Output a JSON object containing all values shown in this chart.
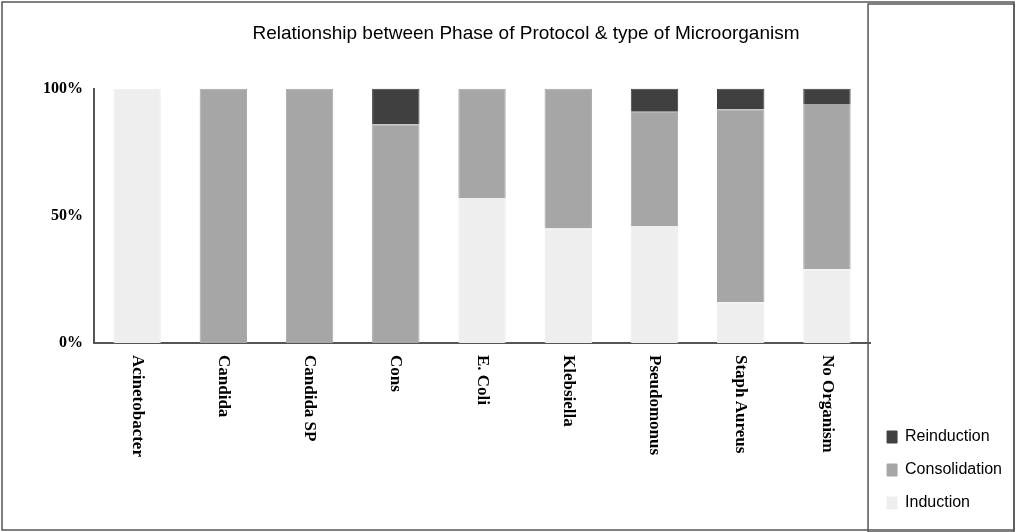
{
  "chart_data": {
    "type": "bar",
    "title": "Relationship between Phase of Protocol & type of Microorganism",
    "categories": [
      "Acinetobacter",
      "Candida",
      "Candida SP",
      "Cons",
      "E. Coli",
      "Klebsiella",
      "Pseudomonus",
      "Staph Aureus",
      "No Organism"
    ],
    "stacked": true,
    "series": [
      {
        "name": "Induction",
        "color": "#eeeeee",
        "values": [
          100,
          0,
          0,
          0,
          57,
          45,
          46,
          16,
          29
        ]
      },
      {
        "name": "Consolidation",
        "color": "#a6a6a6",
        "values": [
          0,
          100,
          100,
          86,
          43,
          55,
          45,
          76,
          65
        ]
      },
      {
        "name": "Reinduction",
        "color": "#404040",
        "values": [
          0,
          0,
          0,
          14,
          0,
          0,
          9,
          8,
          6
        ]
      }
    ],
    "ylim": [
      0,
      100
    ],
    "yticks": [
      {
        "value": 0,
        "label": "0%"
      },
      {
        "value": 50,
        "label": "50%"
      },
      {
        "value": 100,
        "label": "100%"
      }
    ],
    "grid": false,
    "legend": "bottom right"
  }
}
